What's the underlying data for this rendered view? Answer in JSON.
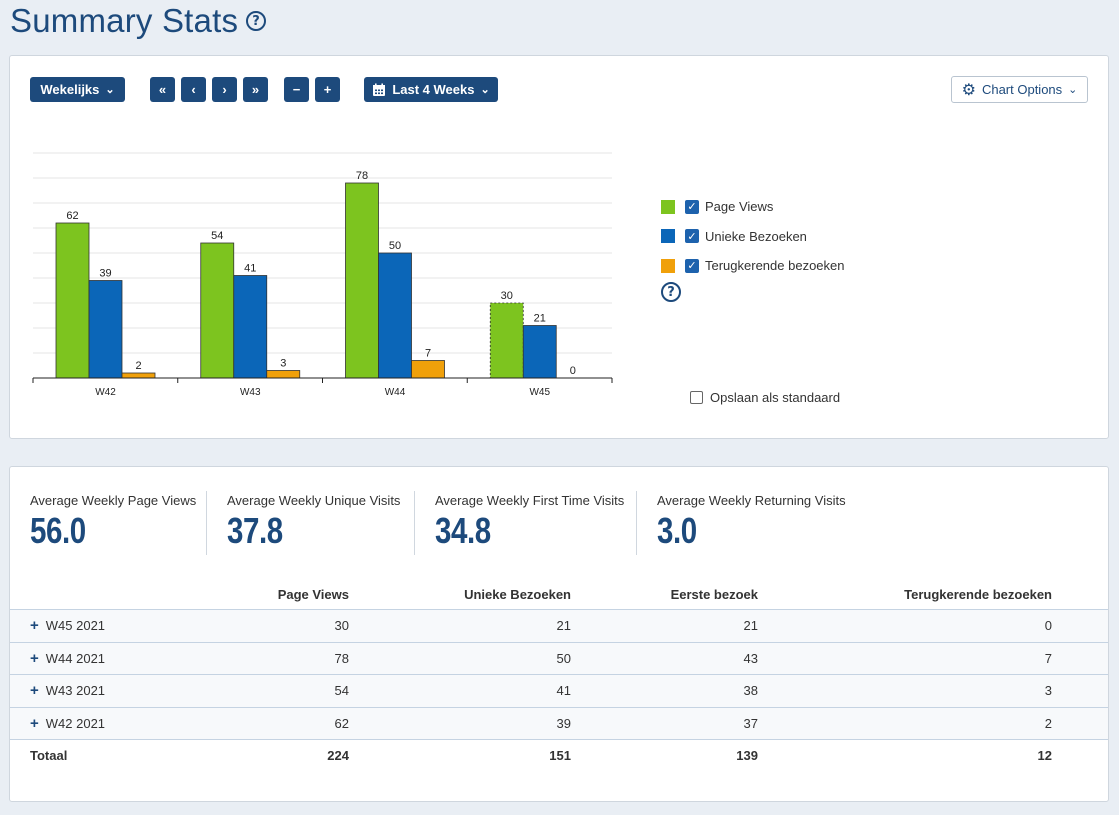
{
  "title": "Summary Stats",
  "toolbar": {
    "period_label": "Wekelijks",
    "first_label": "«",
    "prev_label": "‹",
    "next_label": "›",
    "last_label": "»",
    "zoom_out_label": "−",
    "zoom_in_label": "+",
    "range_label": "Last 4 Weeks",
    "chart_options_label": "Chart Options"
  },
  "chart_data": {
    "type": "bar",
    "categories": [
      "W42",
      "W43",
      "W44",
      "W45"
    ],
    "series": [
      {
        "name": "Page Views",
        "values": [
          62,
          54,
          78,
          30
        ],
        "color": "#7dc41f"
      },
      {
        "name": "Unieke Bezoeken",
        "values": [
          39,
          41,
          50,
          21
        ],
        "color": "#0b66b8"
      },
      {
        "name": "Terugkerende bezoeken",
        "values": [
          2,
          3,
          7,
          0
        ],
        "color": "#f0a00a"
      }
    ],
    "ylim": [
      0,
      90
    ],
    "grid": true,
    "partial_period": "W45",
    "legend_position": "right"
  },
  "legend": {
    "items": [
      {
        "label": "Page Views",
        "checked": true
      },
      {
        "label": "Unieke Bezoeken",
        "checked": true
      },
      {
        "label": "Terugkerende bezoeken",
        "checked": true
      }
    ],
    "save_default_label": "Opslaan als standaard"
  },
  "kpis": [
    {
      "label": "Average Weekly Page Views",
      "value": "56.0"
    },
    {
      "label": "Average Weekly Unique Visits",
      "value": "37.8"
    },
    {
      "label": "Average Weekly First Time Visits",
      "value": "34.8"
    },
    {
      "label": "Average Weekly Returning Visits",
      "value": "3.0"
    }
  ],
  "table": {
    "headers": [
      "",
      "Page Views",
      "Unieke Bezoeken",
      "Eerste bezoek",
      "Terugkerende bezoeken"
    ],
    "rows": [
      {
        "period": "W45 2021",
        "page_views": "30",
        "unique": "21",
        "first": "21",
        "returning": "0"
      },
      {
        "period": "W44 2021",
        "page_views": "78",
        "unique": "50",
        "first": "43",
        "returning": "7"
      },
      {
        "period": "W43 2021",
        "page_views": "54",
        "unique": "41",
        "first": "38",
        "returning": "3"
      },
      {
        "period": "W42 2021",
        "page_views": "62",
        "unique": "39",
        "first": "37",
        "returning": "2"
      }
    ],
    "total": {
      "label": "Totaal",
      "page_views": "224",
      "unique": "151",
      "first": "139",
      "returning": "12"
    }
  }
}
